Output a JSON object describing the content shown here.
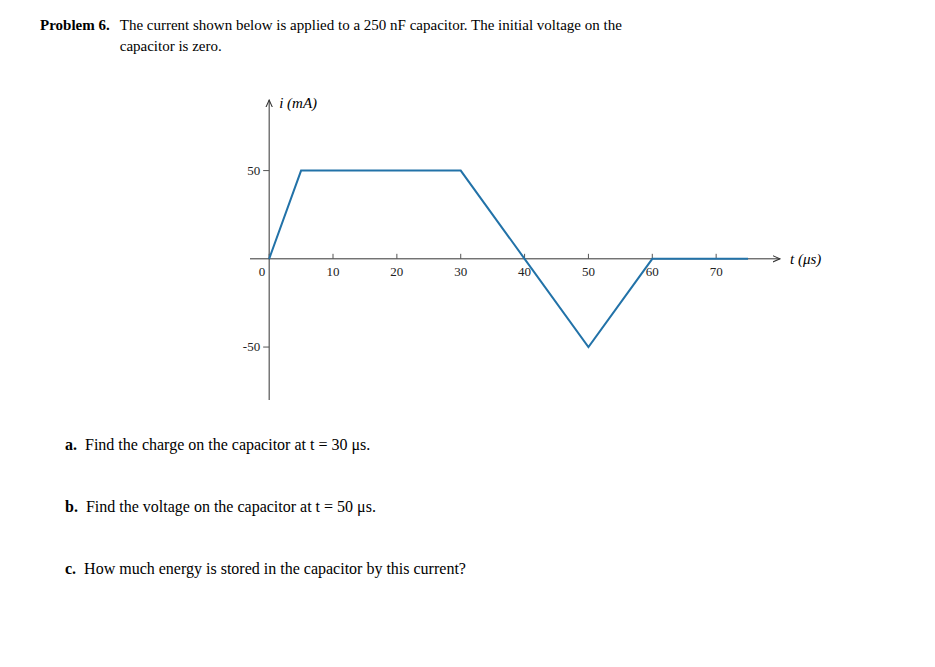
{
  "chart_data": {
    "type": "line",
    "title": "Problem 6.",
    "subtitle": [
      "The current shown below is applied to a 250 nF capacitor. The initial voltage on the",
      "capacitor is zero."
    ],
    "xlabel": "t (μs)",
    "ylabel": "i (mA)",
    "x": [
      0,
      5,
      10,
      30,
      40,
      50,
      60,
      75
    ],
    "values": [
      0,
      50,
      50,
      50,
      0,
      -50,
      0,
      0
    ],
    "color": "#2272a8",
    "xlim": [
      -3,
      80
    ],
    "ylim": [
      -80,
      90
    ],
    "xticks": [
      0,
      10,
      20,
      30,
      40,
      50,
      60,
      70
    ],
    "yticks": [
      -50,
      50
    ],
    "grid": false,
    "annotations": [
      {
        "label": "a.",
        "text": "Find the charge on the capacitor at t = 30 μs."
      },
      {
        "label": "b.",
        "text": "Find the voltage on the capacitor at t = 50 μs."
      },
      {
        "label": "c.",
        "text": "How much energy is stored in the capacitor by this current?"
      }
    ]
  }
}
